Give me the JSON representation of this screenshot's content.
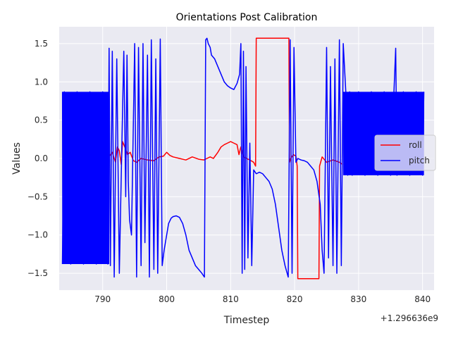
{
  "chart_data": {
    "type": "line",
    "title": "Orientations Post Calibration",
    "xlabel": "Timestep",
    "ylabel": "Values",
    "x_offset_label": "+1.296636e9",
    "xlim": [
      783.2,
      841.8
    ],
    "ylim": [
      -1.72,
      1.72
    ],
    "x_ticks": [
      790,
      800,
      810,
      820,
      830,
      840
    ],
    "x_tick_labels": [
      "790",
      "800",
      "810",
      "820",
      "830",
      "840"
    ],
    "y_ticks": [
      -1.5,
      -1.0,
      -0.5,
      0.0,
      0.5,
      1.0,
      1.5
    ],
    "y_tick_labels": [
      "−1.5",
      "−1.0",
      "−0.5",
      "0.0",
      "0.5",
      "1.0",
      "1.5"
    ],
    "grid": true,
    "legend_position": "center-right",
    "background_color": "#eaeaf2",
    "grid_color": "#ffffff",
    "series": [
      {
        "name": "roll",
        "color": "#ff0000",
        "x": [
          791.0,
          791.5,
          792.0,
          792.3,
          792.6,
          792.9,
          793.1,
          793.3,
          793.6,
          793.9,
          794.3,
          794.8,
          795.3,
          796.0,
          797.0,
          798.0,
          798.8,
          799.5,
          800.0,
          800.5,
          801.0,
          802.0,
          803.0,
          804.0,
          805.0,
          805.8,
          806.3,
          806.8,
          807.3,
          808.0,
          808.5,
          809.0,
          809.5,
          810.0,
          810.5,
          811.0,
          811.3,
          811.6,
          812.0,
          812.5,
          813.2,
          813.6,
          813.9,
          814.0,
          814.1,
          816.0,
          818.0,
          819.1,
          819.2,
          819.4,
          819.8,
          820.2,
          820.4,
          820.5,
          822.0,
          823.8,
          823.9,
          824.3,
          825.0,
          826.0,
          827.0,
          827.5
        ],
        "y": [
          0.02,
          0.08,
          -0.05,
          0.15,
          0.1,
          -0.08,
          0.22,
          0.18,
          0.12,
          0.05,
          0.08,
          -0.03,
          -0.05,
          0.0,
          -0.02,
          -0.03,
          0.02,
          0.03,
          0.08,
          0.04,
          0.02,
          0.0,
          -0.02,
          0.02,
          -0.01,
          -0.02,
          0.0,
          0.02,
          0.0,
          0.08,
          0.15,
          0.18,
          0.2,
          0.22,
          0.2,
          0.18,
          0.05,
          0.15,
          0.02,
          0.0,
          -0.03,
          -0.05,
          -0.1,
          1.57,
          1.57,
          1.57,
          1.57,
          1.57,
          -0.05,
          0.0,
          0.05,
          0.03,
          -0.1,
          -1.57,
          -1.57,
          -1.57,
          -0.1,
          0.02,
          -0.05,
          -0.02,
          -0.05,
          -0.08
        ]
      },
      {
        "name": "pitch",
        "color": "#0000ff",
        "x": [
          783.7,
          784.0,
          785.0,
          786.0,
          787.0,
          788.0,
          789.0,
          790.0,
          790.8,
          791.0,
          791.2,
          791.5,
          791.8,
          792.2,
          792.6,
          793.0,
          793.3,
          793.6,
          793.8,
          794.0,
          794.2,
          794.5,
          795.0,
          795.3,
          795.6,
          796.0,
          796.3,
          796.6,
          797.0,
          797.3,
          797.6,
          798.0,
          798.3,
          798.6,
          799.0,
          799.3,
          799.6,
          800.0,
          800.3,
          800.7,
          801.0,
          801.5,
          802.0,
          802.5,
          803.0,
          803.5,
          804.0,
          804.5,
          805.0,
          805.5,
          805.9,
          806.1,
          806.3,
          806.5,
          806.8,
          807.0,
          807.5,
          808.0,
          808.5,
          809.0,
          809.5,
          810.0,
          810.5,
          811.0,
          811.4,
          811.6,
          811.8,
          812.0,
          812.2,
          812.4,
          812.7,
          813.0,
          813.3,
          813.6,
          814.0,
          814.5,
          815.0,
          815.5,
          816.0,
          816.5,
          817.0,
          817.5,
          818.0,
          818.5,
          819.0,
          819.3,
          819.6,
          819.9,
          820.2,
          820.5,
          821.0,
          821.5,
          822.0,
          822.5,
          823.0,
          823.5,
          824.0,
          824.3,
          824.6,
          825.0,
          825.3,
          825.6,
          826.0,
          826.3,
          826.6,
          827.0,
          827.3,
          827.6,
          828.0,
          828.3,
          828.6,
          829.0,
          830.0,
          831.0,
          832.0,
          833.0,
          834.0,
          835.0,
          835.8,
          836.0,
          837.0,
          838.0,
          839.0,
          840.0,
          840.2
        ],
        "y": [
          -1.38,
          0.87,
          -1.38,
          0.87,
          -1.38,
          0.87,
          -1.38,
          0.87,
          -1.38,
          1.44,
          -1.4,
          1.4,
          -1.55,
          1.3,
          -1.5,
          0.2,
          1.4,
          -0.5,
          1.35,
          -0.3,
          -0.8,
          -1.0,
          1.5,
          -1.55,
          1.45,
          -1.4,
          1.5,
          -1.1,
          1.35,
          -1.55,
          1.55,
          -1.45,
          1.3,
          -1.5,
          1.56,
          -1.4,
          -1.2,
          -1.0,
          -0.85,
          -0.78,
          -0.76,
          -0.75,
          -0.77,
          -0.85,
          -1.0,
          -1.2,
          -1.3,
          -1.4,
          -1.45,
          -1.5,
          -1.55,
          1.55,
          1.57,
          1.5,
          1.45,
          1.35,
          1.3,
          1.2,
          1.1,
          1.0,
          0.95,
          0.92,
          0.9,
          0.98,
          1.1,
          1.5,
          -1.5,
          1.4,
          -1.45,
          1.2,
          -1.3,
          0.2,
          -1.4,
          -0.15,
          -0.2,
          -0.18,
          -0.2,
          -0.25,
          -0.3,
          -0.4,
          -0.6,
          -0.9,
          -1.2,
          -1.4,
          -1.55,
          1.55,
          -1.5,
          1.45,
          -0.05,
          0.0,
          -0.02,
          -0.03,
          -0.05,
          -0.1,
          -0.15,
          -0.3,
          -0.6,
          -1.2,
          -1.5,
          1.45,
          -1.3,
          1.2,
          -1.4,
          1.3,
          -1.5,
          1.55,
          -1.4,
          1.5,
          0.87,
          -0.22,
          0.87,
          -0.22,
          0.87,
          -0.22,
          0.87,
          -0.22,
          0.87,
          -0.22,
          1.44,
          -0.22,
          0.87,
          -0.22,
          0.87,
          -0.22,
          0.87
        ]
      }
    ]
  }
}
